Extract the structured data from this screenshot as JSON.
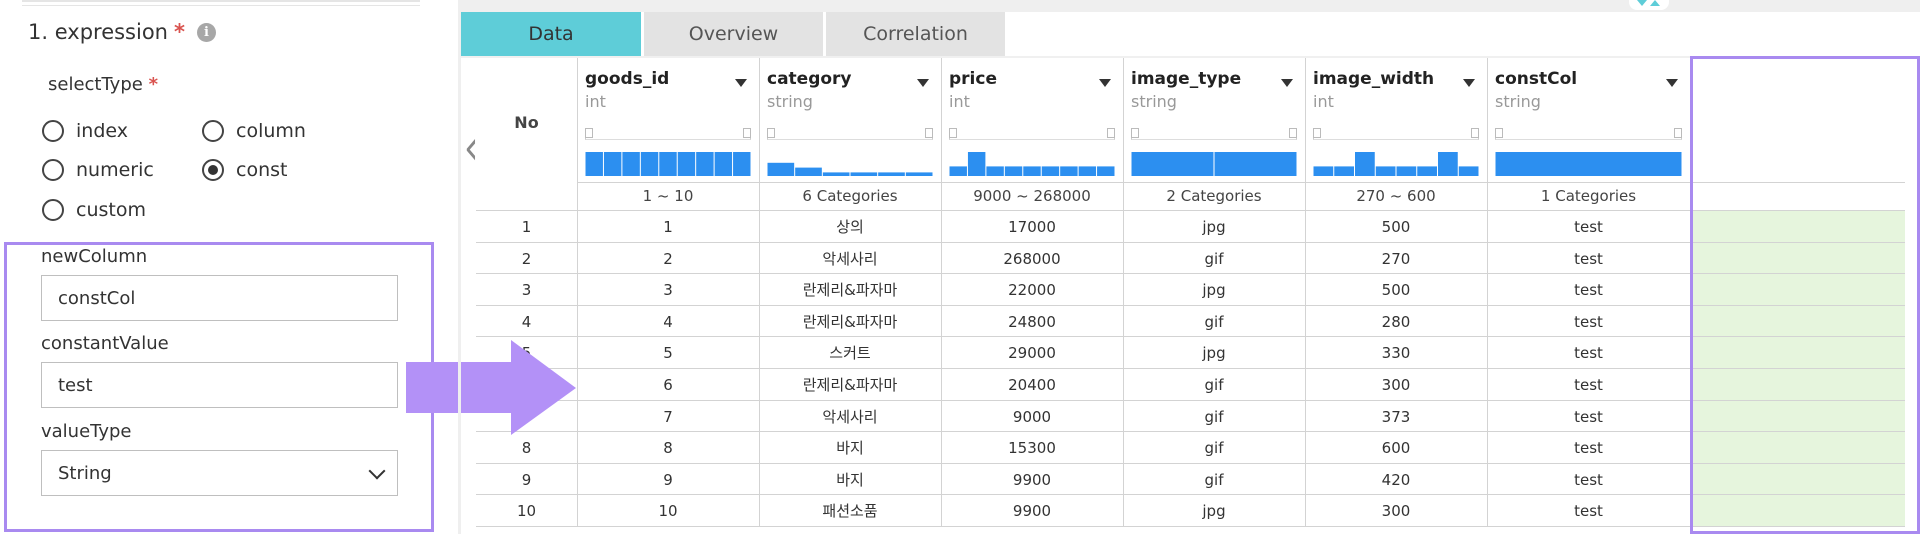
{
  "left_panel": {
    "section_title": "1. expression",
    "required_mark": "*",
    "info_icon": "i",
    "select_type_label": "selectType",
    "radios": [
      {
        "label": "index",
        "checked": false
      },
      {
        "label": "column",
        "checked": false
      },
      {
        "label": "numeric",
        "checked": false
      },
      {
        "label": "const",
        "checked": true
      },
      {
        "label": "custom",
        "checked": false
      }
    ],
    "new_column_label": "newColumn",
    "new_column_value": "constCol",
    "constant_value_label": "constantValue",
    "constant_value_value": "test",
    "value_type_label": "valueType",
    "value_type_selected": "String"
  },
  "tabs": [
    {
      "label": "Data",
      "active": true
    },
    {
      "label": "Overview",
      "active": false
    },
    {
      "label": "Correlation",
      "active": false
    }
  ],
  "table": {
    "no_header": "No",
    "columns": [
      {
        "name": "goods_id",
        "type": "int",
        "summary": "1 ~ 10",
        "hist": [
          1,
          1,
          1,
          1,
          1,
          1,
          1,
          1,
          1
        ]
      },
      {
        "name": "category",
        "type": "string",
        "summary": "6 Categories",
        "hist": [
          0.55,
          0.35,
          0.15,
          0.15,
          0.15,
          0.15
        ]
      },
      {
        "name": "price",
        "type": "int",
        "summary": "9000 ~ 268000",
        "hist": [
          0.4,
          1,
          0.4,
          0.4,
          0.4,
          0.4,
          0.4,
          0.4,
          0.4
        ]
      },
      {
        "name": "image_type",
        "type": "string",
        "summary": "2 Categories",
        "hist": [
          1,
          1
        ]
      },
      {
        "name": "image_width",
        "type": "int",
        "summary": "270 ~ 600",
        "hist": [
          0.4,
          0.4,
          1,
          0.4,
          0.4,
          0.4,
          1,
          0.4
        ]
      },
      {
        "name": "constCol",
        "type": "string",
        "summary": "1 Categories",
        "hist": [
          1
        ]
      }
    ],
    "rows": [
      [
        "1",
        "1",
        "상의",
        "17000",
        "jpg",
        "500",
        "test"
      ],
      [
        "2",
        "2",
        "악세사리",
        "268000",
        "gif",
        "270",
        "test"
      ],
      [
        "3",
        "3",
        "란제리&파자마",
        "22000",
        "jpg",
        "500",
        "test"
      ],
      [
        "4",
        "4",
        "란제리&파자마",
        "24800",
        "gif",
        "280",
        "test"
      ],
      [
        "5",
        "5",
        "스커트",
        "29000",
        "jpg",
        "330",
        "test"
      ],
      [
        "6",
        "6",
        "란제리&파자마",
        "20400",
        "gif",
        "300",
        "test"
      ],
      [
        "7",
        "7",
        "악세사리",
        "9000",
        "gif",
        "373",
        "test"
      ],
      [
        "8",
        "8",
        "바지",
        "15300",
        "gif",
        "600",
        "test"
      ],
      [
        "9",
        "9",
        "바지",
        "9900",
        "gif",
        "420",
        "test"
      ],
      [
        "10",
        "10",
        "패션소품",
        "9900",
        "jpg",
        "300",
        "test"
      ]
    ]
  },
  "colors": {
    "accent_tab": "#5ecdd8",
    "highlight_frame": "#a98af0",
    "histogram_bar": "#2c8ff0",
    "const_column_bg": "#e6f5dd"
  }
}
